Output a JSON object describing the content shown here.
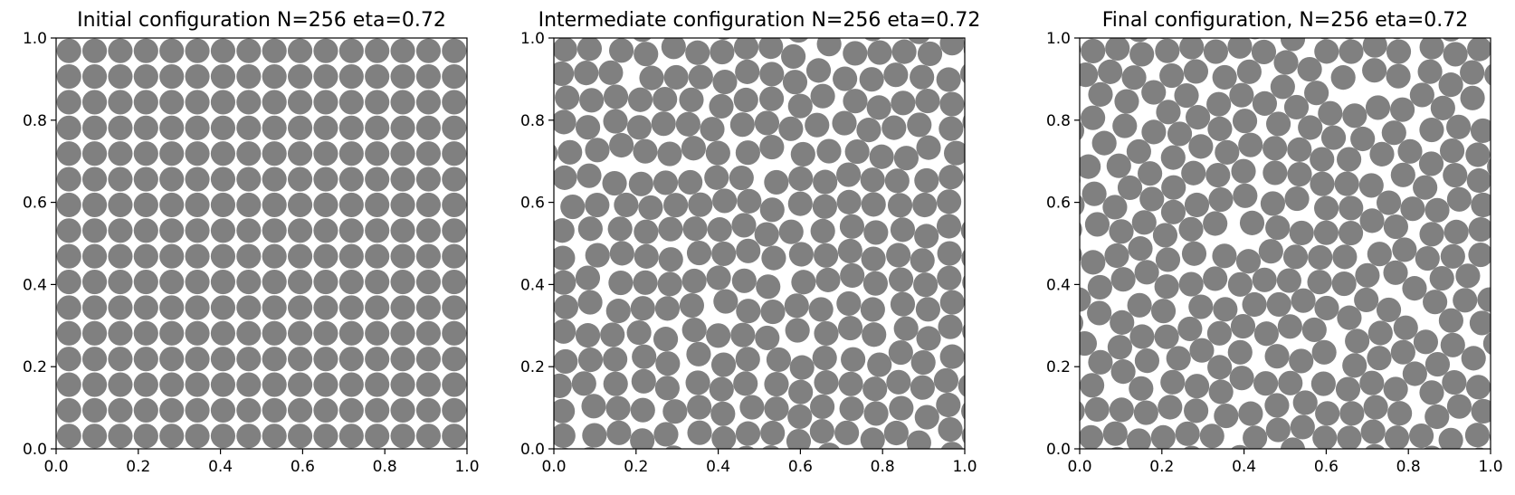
{
  "chart_data": [
    {
      "type": "scatter",
      "marker": "disk",
      "title": "Initial configuration N=256 eta=0.72",
      "N": 256,
      "eta": 0.72,
      "xlim": [
        0.0,
        1.0
      ],
      "ylim": [
        0.0,
        1.0
      ],
      "xticks": [
        "0.0",
        "0.2",
        "0.4",
        "0.6",
        "0.8",
        "1.0"
      ],
      "yticks": [
        "0.0",
        "0.2",
        "0.4",
        "0.6",
        "0.8",
        "1.0"
      ],
      "arrangement": "square-lattice",
      "grid": false,
      "marker_color": "#808080"
    },
    {
      "type": "scatter",
      "marker": "disk",
      "title": "Intermediate configuration N=256 eta=0.72",
      "N": 256,
      "eta": 0.72,
      "xlim": [
        0.0,
        1.0
      ],
      "ylim": [
        0.0,
        1.0
      ],
      "xticks": [
        "0.0",
        "0.2",
        "0.4",
        "0.6",
        "0.8",
        "1.0"
      ],
      "yticks": [
        "0.0",
        "0.2",
        "0.4",
        "0.6",
        "0.8",
        "1.0"
      ],
      "arrangement": "disordered",
      "grid": false,
      "marker_color": "#808080"
    },
    {
      "type": "scatter",
      "marker": "disk",
      "title": "Final configuration, N=256 eta=0.72",
      "N": 256,
      "eta": 0.72,
      "xlim": [
        0.0,
        1.0
      ],
      "ylim": [
        0.0,
        1.0
      ],
      "xticks": [
        "0.0",
        "0.2",
        "0.4",
        "0.6",
        "0.8",
        "1.0"
      ],
      "yticks": [
        "0.0",
        "0.2",
        "0.4",
        "0.6",
        "0.8",
        "1.0"
      ],
      "arrangement": "disordered",
      "grid": false,
      "marker_color": "#808080"
    }
  ]
}
